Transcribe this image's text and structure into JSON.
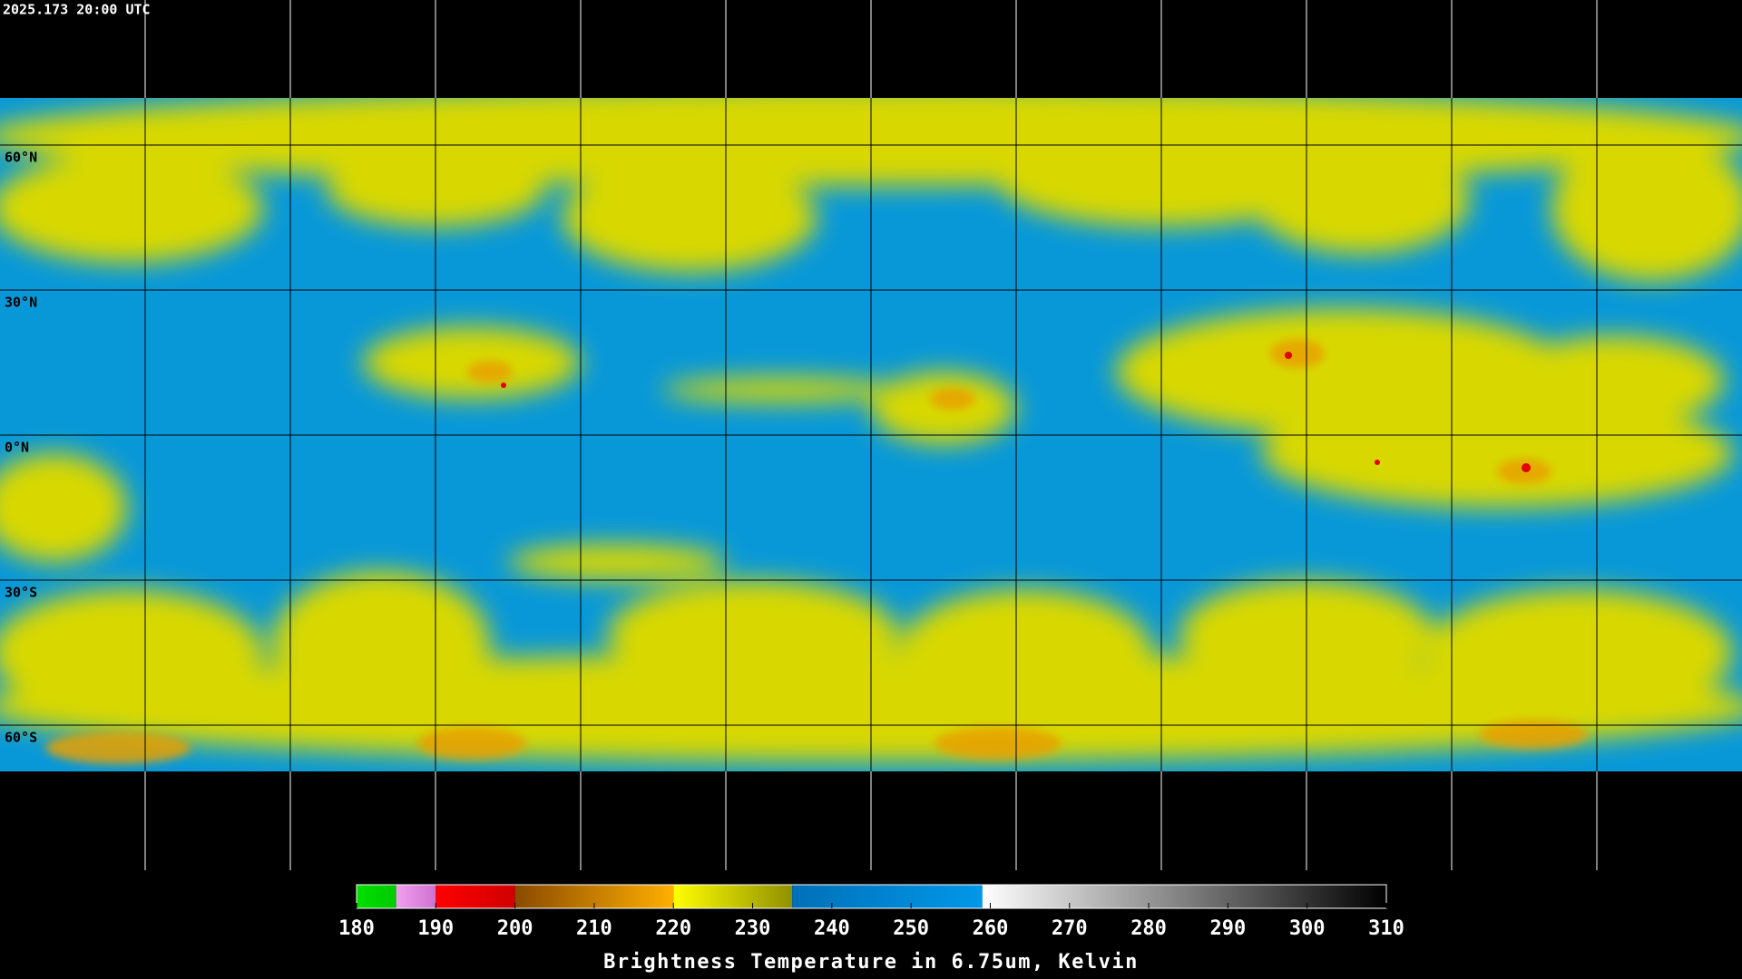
{
  "header": {
    "timestamp": "2025.173 20:00 UTC"
  },
  "grid": {
    "lat_labels": [
      "60°N",
      "30°N",
      "0°N",
      "30°S",
      "60°S"
    ]
  },
  "colorbar": {
    "title": "Brightness Temperature in 6.75um, Kelvin",
    "lim": [
      180,
      310
    ],
    "ticks": [
      180,
      190,
      200,
      210,
      220,
      230,
      240,
      250,
      260,
      270,
      280,
      290,
      300,
      310
    ],
    "bands": [
      {
        "from": 180,
        "to": 185,
        "colors": [
          "#00e000",
          "#00c800"
        ]
      },
      {
        "from": 185,
        "to": 190,
        "colors": [
          "#f0a0f0",
          "#d070d0"
        ]
      },
      {
        "from": 190,
        "to": 200,
        "colors": [
          "#ff0000",
          "#d00000"
        ]
      },
      {
        "from": 200,
        "to": 220,
        "colors": [
          "#8a4a00",
          "#ffb000"
        ]
      },
      {
        "from": 220,
        "to": 235,
        "colors": [
          "#ffff00",
          "#909000"
        ]
      },
      {
        "from": 235,
        "to": 259,
        "colors": [
          "#0070b8",
          "#0098e8"
        ]
      },
      {
        "from": 259,
        "to": 310,
        "colors": [
          "#ffffff",
          "#000000"
        ]
      }
    ]
  }
}
